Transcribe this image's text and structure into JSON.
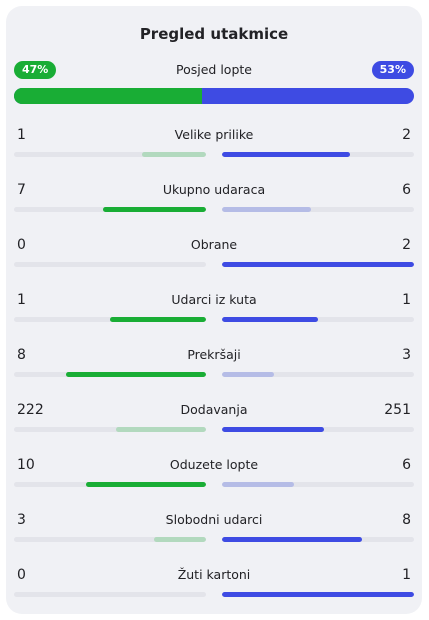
{
  "title": "Pregled utakmice",
  "colors": {
    "home": "#19ad35",
    "home_light": "#b2d9be",
    "away": "#3e4be3",
    "away_light": "#b5bce6",
    "track": "#e3e4ea"
  },
  "possession": {
    "label": "Posjed lopte",
    "home_text": "47%",
    "away_text": "53%",
    "home_value": 47,
    "away_value": 53
  },
  "stats": [
    {
      "label": "Velike prilike",
      "home": "1",
      "away": "2"
    },
    {
      "label": "Ukupno udaraca",
      "home": "7",
      "away": "6"
    },
    {
      "label": "Obrane",
      "home": "0",
      "away": "2"
    },
    {
      "label": "Udarci iz kuta",
      "home": "1",
      "away": "1"
    },
    {
      "label": "Prekršaji",
      "home": "8",
      "away": "3"
    },
    {
      "label": "Dodavanja",
      "home": "222",
      "away": "251"
    },
    {
      "label": "Oduzete lopte",
      "home": "10",
      "away": "6"
    },
    {
      "label": "Slobodni udarci",
      "home": "3",
      "away": "8"
    },
    {
      "label": "Žuti kartoni",
      "home": "0",
      "away": "1"
    }
  ]
}
